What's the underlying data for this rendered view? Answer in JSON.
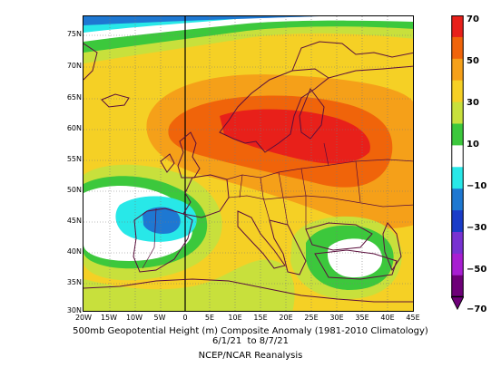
{
  "figure": {
    "title": "500mb Geopotential Height (m) Composite Anomaly (1981-2010 Climatology)",
    "dates": "6/1/21  to 8/7/21",
    "source": "NCEP/NCAR Reanalysis"
  },
  "axes": {
    "lat_labels": [
      "75N",
      "70N",
      "65N",
      "60N",
      "55N",
      "50N",
      "45N",
      "40N",
      "35N",
      "30N"
    ],
    "lon_labels": [
      "20W",
      "15W",
      "10W",
      "5W",
      "0",
      "5E",
      "10E",
      "15E",
      "20E",
      "25E",
      "30E",
      "35E",
      "40E",
      "45E"
    ]
  },
  "colorbar": {
    "labels": [
      "70",
      "50",
      "30",
      "10",
      "−10",
      "−30",
      "−50",
      "−70"
    ],
    "colors": [
      "#e8201a",
      "#f0640a",
      "#f5a019",
      "#f5d025",
      "#c8e03c",
      "#3cc83c",
      "#ffffff",
      "#28e8e8",
      "#1e78d2",
      "#1a3cc8",
      "#7832d2",
      "#a81ed2",
      "#6e0078"
    ]
  }
}
